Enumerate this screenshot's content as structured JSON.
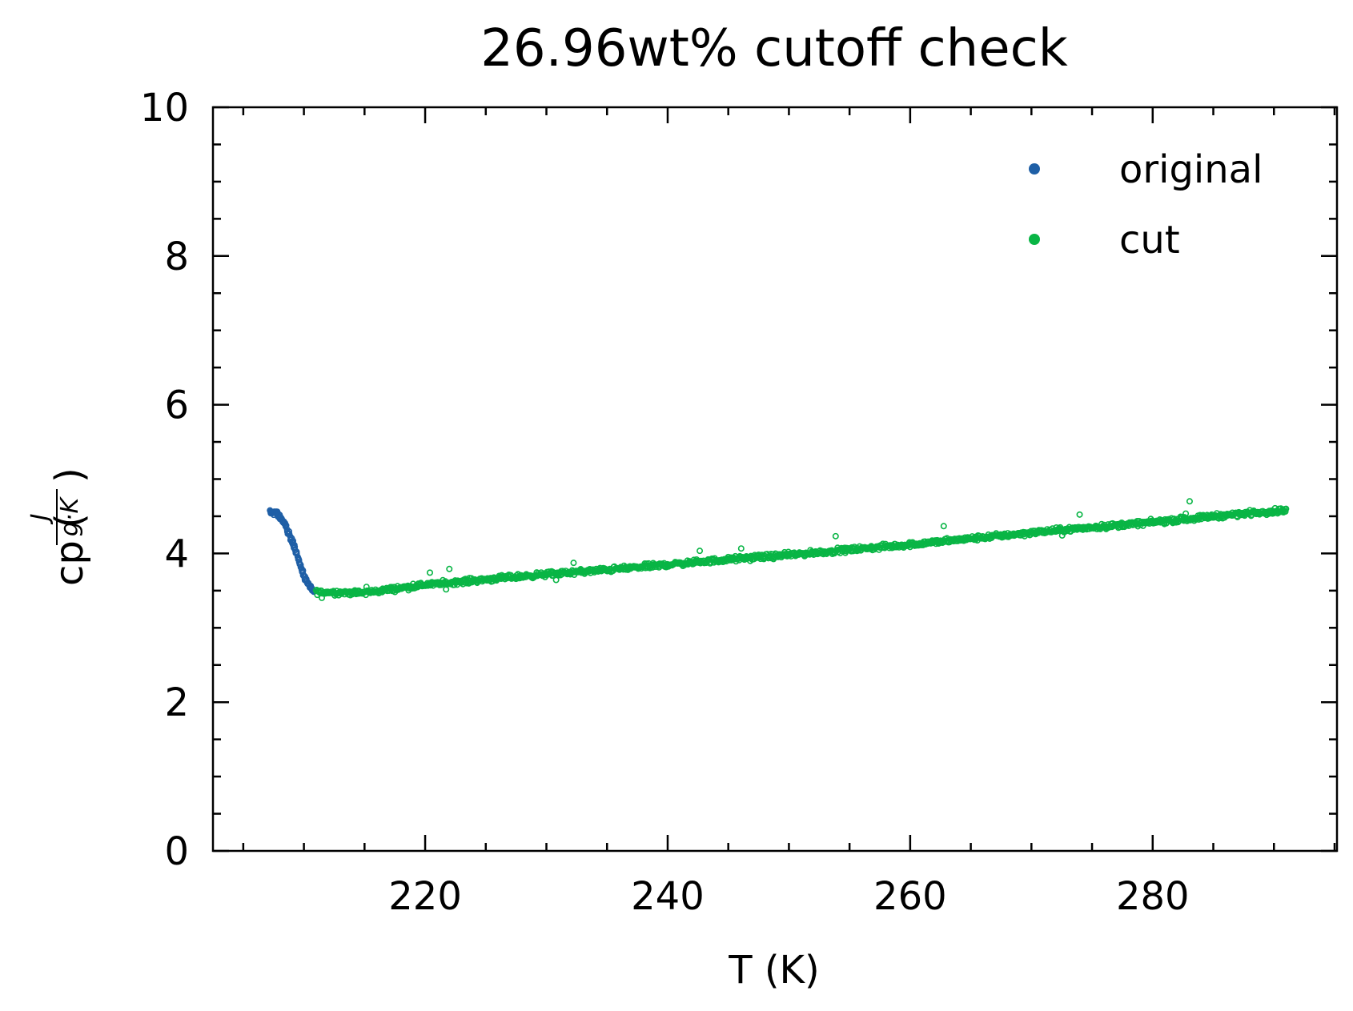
{
  "chart_data": {
    "type": "scatter",
    "title": "26.96wt% cutoff check",
    "xlabel": "T (K)",
    "ylabel": {
      "prefix": "cp (",
      "num": "J",
      "den": "g·K",
      "suffix": ")"
    },
    "xlim": [
      202.5,
      295.2
    ],
    "ylim": [
      0,
      10
    ],
    "x_major_ticks": [
      220,
      240,
      260,
      280
    ],
    "x_minor_step": 5,
    "y_major_ticks": [
      0,
      2,
      4,
      6,
      8,
      10
    ],
    "y_minor_step": 0.5,
    "tick_direction": "in",
    "grid": false,
    "legend": {
      "placement": "top-right"
    },
    "series": [
      {
        "name": "original",
        "color": "#1f5fa6",
        "marker": "hollow-circle",
        "x": [
          207.2,
          207.6,
          208.0,
          208.4,
          208.8,
          209.2,
          209.6,
          210.0,
          210.4,
          210.8
        ],
        "y": [
          4.55,
          4.55,
          4.5,
          4.4,
          4.25,
          4.1,
          3.9,
          3.7,
          3.55,
          3.5
        ]
      },
      {
        "name": "cut",
        "color": "#09b545",
        "marker": "hollow-circle",
        "x": [
          211,
          215,
          220,
          225,
          230,
          235,
          240,
          245,
          250,
          255,
          260,
          265,
          270,
          275,
          280,
          285,
          290,
          291
        ],
        "y": [
          3.48,
          3.47,
          3.58,
          3.65,
          3.72,
          3.78,
          3.85,
          3.92,
          3.98,
          4.05,
          4.12,
          4.2,
          4.28,
          4.35,
          4.42,
          4.5,
          4.57,
          4.58
        ],
        "scatter_spread": 0.05
      }
    ]
  }
}
